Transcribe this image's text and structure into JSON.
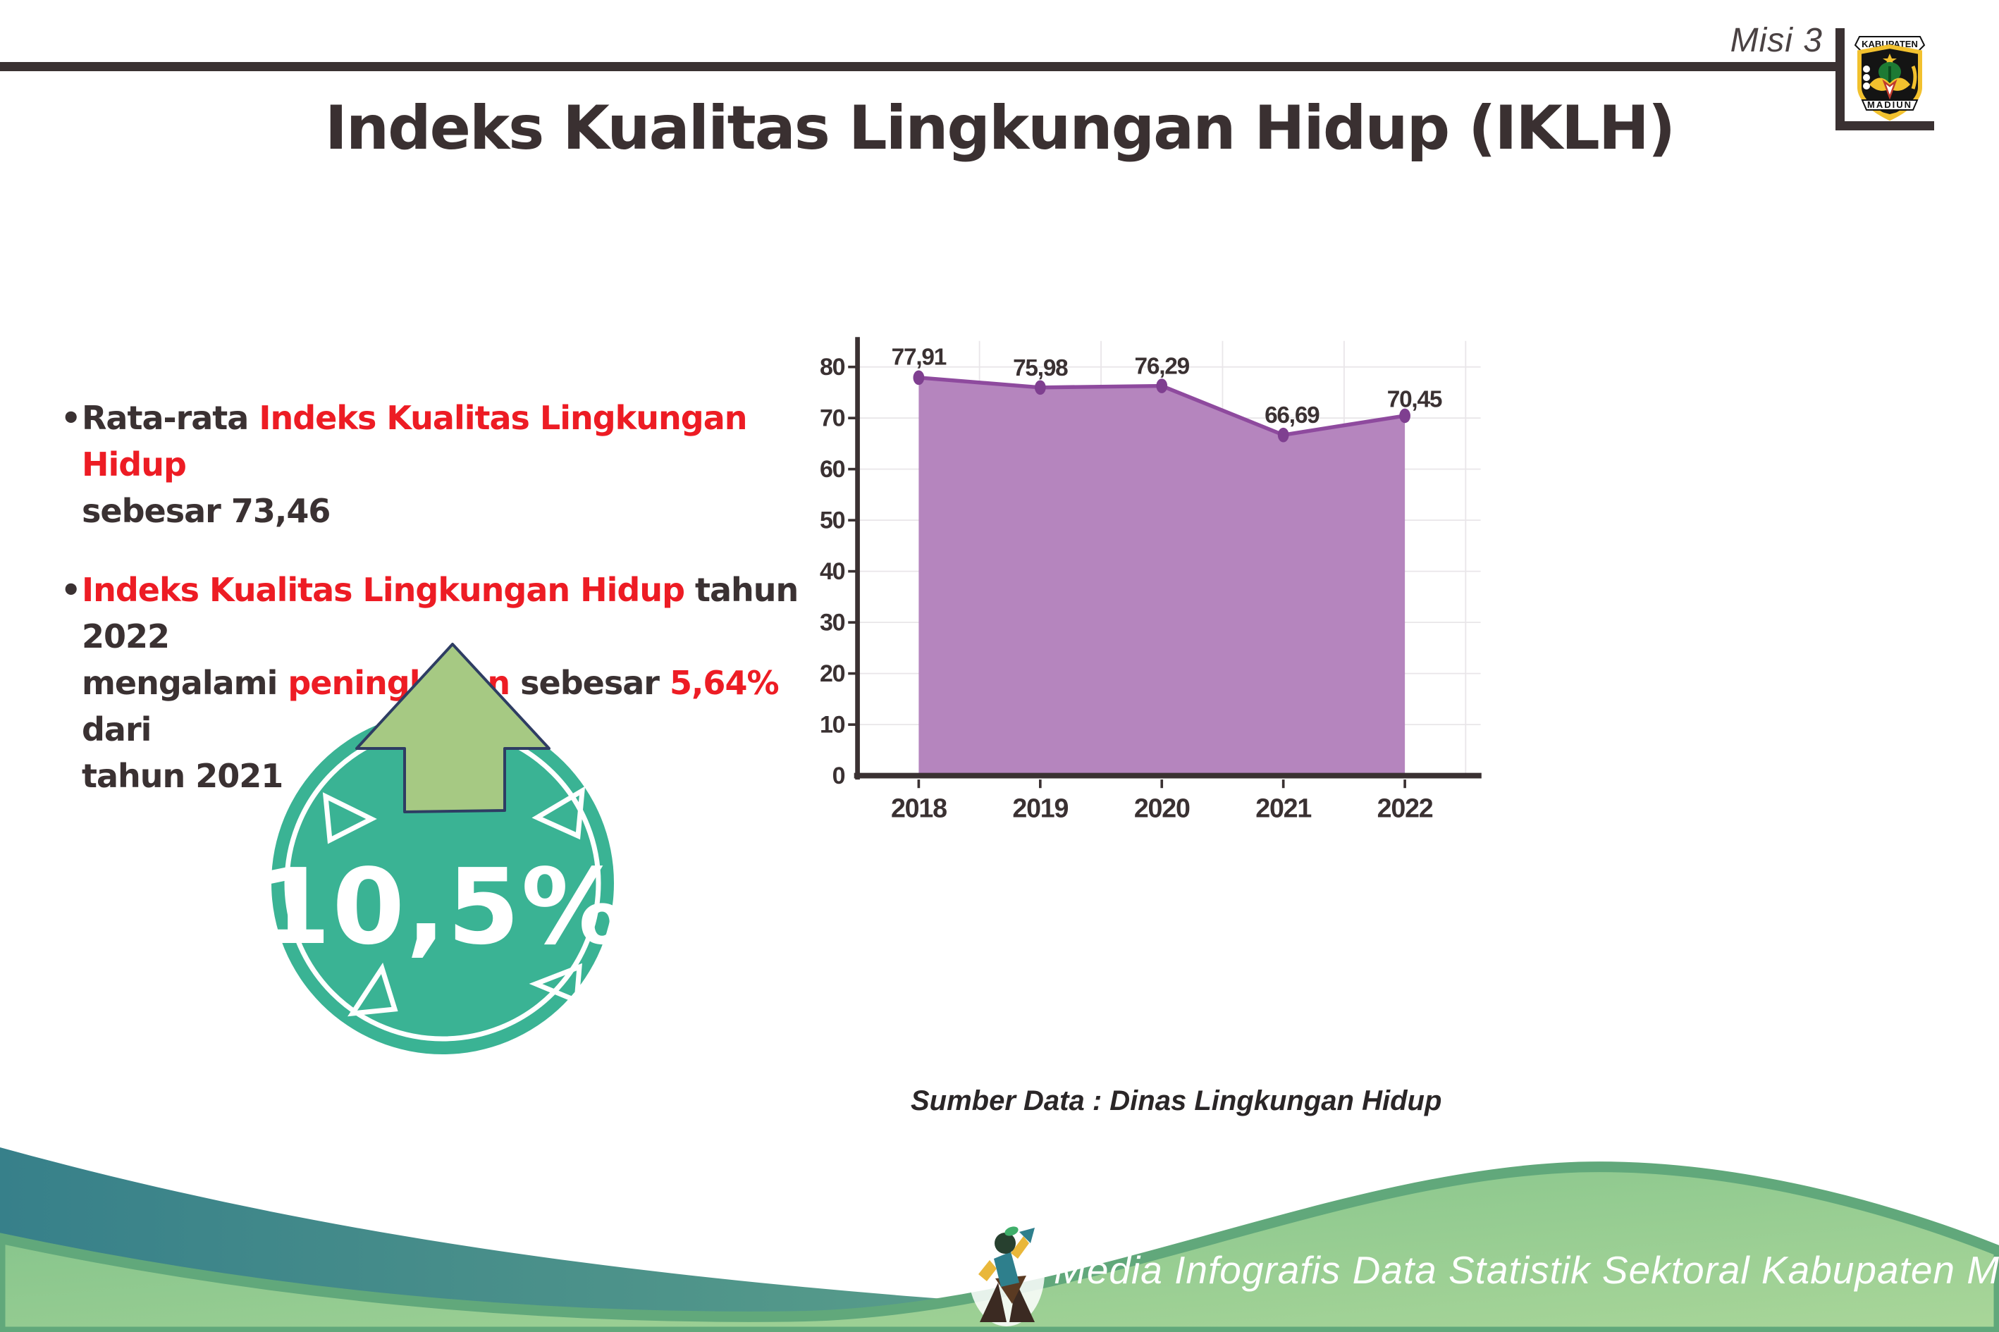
{
  "header": {
    "misi_label": "Misi 3",
    "title": "Indeks Kualitas Lingkungan Hidup (IKLH)",
    "crest": {
      "top_banner": "KABUPATEN",
      "bottom_banner": "MADIUN"
    }
  },
  "bullets": {
    "b1": {
      "seg1": "Rata-rata ",
      "seg2": "Indeks Kualitas Lingkungan Hidup",
      "line2": "sebesar 73,46"
    },
    "b2": {
      "seg1": "Indeks Kualitas Lingkungan Hidup",
      "seg2": " tahun 2022",
      "l2s1": "mengalami ",
      "l2s2": "peningkatan",
      "l2s3": " sebesar ",
      "l2s4": "5,64%",
      "l2s5": " dari",
      "line3": "tahun 2021"
    }
  },
  "badge": {
    "value": "10,5%"
  },
  "chart_data": {
    "type": "area",
    "title": "Indeks Kualitas Lingkungan Hidup (IKLH)",
    "categories": [
      "2018",
      "2019",
      "2020",
      "2021",
      "2022"
    ],
    "values": [
      77.91,
      75.98,
      76.29,
      66.69,
      70.45
    ],
    "value_labels": [
      "77,91",
      "75,98",
      "76,29",
      "66,69",
      "70,45"
    ],
    "y_ticks": [
      0,
      10,
      20,
      30,
      40,
      50,
      60,
      70,
      80
    ],
    "ylim": [
      0,
      85
    ],
    "grid": true,
    "legend": "none",
    "colors": {
      "area": "#b585be",
      "line": "#8e4a9e",
      "point": "#7f3f90",
      "axis": "#3a3132",
      "grid": "#e9e6e9"
    }
  },
  "source_note": "Sumber Data : Dinas Lingkungan Hidup",
  "footer": {
    "credit": "Media Infografis Data Statistik Sektoral Kabupaten Madiun |"
  },
  "colors": {
    "accent_red": "#ed1c24",
    "badge_teal": "#3ab394",
    "arrow_green": "#a6c983",
    "arrow_outline": "#2e3d63",
    "wave_teal_dark": "#37808a",
    "wave_teal_light": "#7cbb8b",
    "hill_green_1": "#7fc189",
    "hill_green_2": "#a9d699",
    "hill_edge": "#61a87b"
  }
}
